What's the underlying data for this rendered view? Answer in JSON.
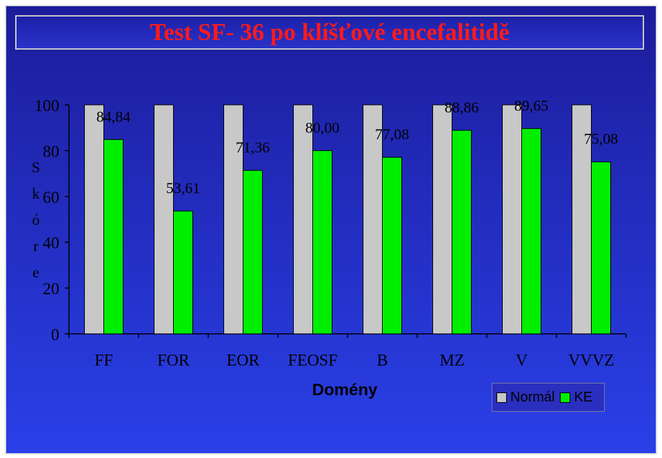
{
  "title": "Test SF- 36 po klíšťové encefalitidě",
  "chart_data": {
    "type": "bar",
    "categories": [
      "FF",
      "FOR",
      "EOR",
      "FEOSF",
      "B",
      "MZ",
      "V",
      "VVVZ"
    ],
    "series": [
      {
        "name": "Normál",
        "color": "#c8c8c8",
        "values": [
          100,
          100,
          100,
          100,
          100,
          100,
          100,
          100
        ]
      },
      {
        "name": "KE",
        "color": "#00ee00",
        "values": [
          84.84,
          53.61,
          71.36,
          80.0,
          77.08,
          88.86,
          89.65,
          75.08
        ]
      }
    ],
    "data_labels": [
      "84,84",
      "53,61",
      "71,36",
      "80,00",
      "77,08",
      "88,86",
      "89,65",
      "75,08"
    ],
    "yticks": [
      "0",
      "20",
      "40",
      "60",
      "80",
      "100"
    ],
    "ylim": [
      0,
      100
    ],
    "xlabel": "Domény",
    "ylabel": "Skóre",
    "legend_position": "bottom-right",
    "grid": false
  }
}
